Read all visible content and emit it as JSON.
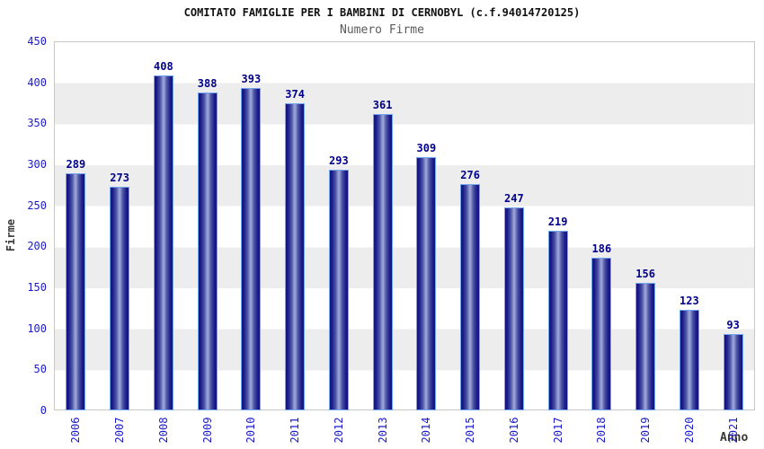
{
  "chart_data": {
    "type": "bar",
    "title": "COMITATO FAMIGLIE PER I BAMBINI DI CERNOBYL (c.f.94014720125)",
    "subtitle": "Numero Firme",
    "xlabel": "Anno",
    "ylabel": "Firme",
    "categories": [
      "2006",
      "2007",
      "2008",
      "2009",
      "2010",
      "2011",
      "2012",
      "2013",
      "2014",
      "2015",
      "2016",
      "2017",
      "2018",
      "2019",
      "2020",
      "2021"
    ],
    "values": [
      289,
      273,
      408,
      388,
      393,
      374,
      293,
      361,
      309,
      276,
      247,
      219,
      186,
      156,
      123,
      93
    ],
    "ylim": [
      0,
      450
    ],
    "ytick_step": 50,
    "yticks": [
      0,
      50,
      100,
      150,
      200,
      250,
      300,
      350,
      400,
      450
    ],
    "legend": "none",
    "grid": "alternating-horizontal-bands-every-50",
    "colors": {
      "bar_edge": "#13137a",
      "bar_center": "#9ba3d8",
      "bar_border": "#72a5ef",
      "value_label": "#00008b",
      "axis_tick_label": "#1a1acc",
      "band_gray": "#ededed",
      "plot_border": "#c8c8c8",
      "title": "#111111",
      "subtitle": "#5a5a5a",
      "axis_title": "#383838"
    }
  }
}
